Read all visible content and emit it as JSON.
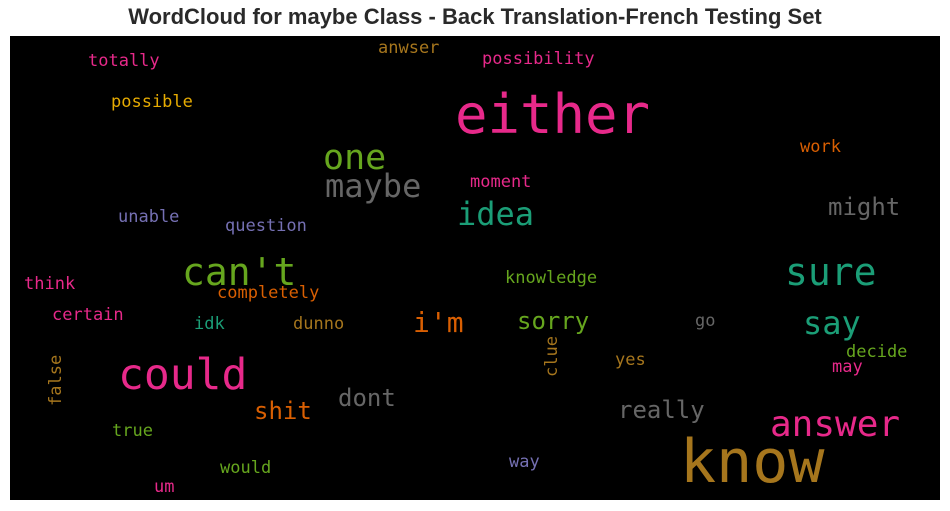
{
  "chart_data": {
    "type": "wordcloud",
    "title": "WordCloud for maybe Class - Back Translation-French Testing Set",
    "background": "#000000",
    "words": [
      {
        "text": "either",
        "weight": 1.0,
        "color": "#e7298a"
      },
      {
        "text": "know",
        "weight": 1.0,
        "color": "#a6761d"
      },
      {
        "text": "could",
        "weight": 0.72,
        "color": "#e7298a"
      },
      {
        "text": "can't",
        "weight": 0.66,
        "color": "#66a61e"
      },
      {
        "text": "sure",
        "weight": 0.66,
        "color": "#1b9e77"
      },
      {
        "text": "answer",
        "weight": 0.62,
        "color": "#e7298a"
      },
      {
        "text": "one",
        "weight": 0.58,
        "color": "#66a61e"
      },
      {
        "text": "maybe",
        "weight": 0.56,
        "color": "#666666"
      },
      {
        "text": "idea",
        "weight": 0.54,
        "color": "#1b9e77"
      },
      {
        "text": "say",
        "weight": 0.54,
        "color": "#1b9e77"
      },
      {
        "text": "i'm",
        "weight": 0.48,
        "color": "#d95f02"
      },
      {
        "text": "really",
        "weight": 0.44,
        "color": "#666666"
      },
      {
        "text": "might",
        "weight": 0.44,
        "color": "#666666"
      },
      {
        "text": "shit",
        "weight": 0.42,
        "color": "#d95f02"
      },
      {
        "text": "dont",
        "weight": 0.42,
        "color": "#666666"
      },
      {
        "text": "sorry",
        "weight": 0.42,
        "color": "#66a61e"
      },
      {
        "text": "possibility",
        "weight": 0.3,
        "color": "#e7298a"
      },
      {
        "text": "totally",
        "weight": 0.3,
        "color": "#e7298a"
      },
      {
        "text": "anwser",
        "weight": 0.3,
        "color": "#a6761d"
      },
      {
        "text": "possible",
        "weight": 0.3,
        "color": "#e6ab02"
      },
      {
        "text": "work",
        "weight": 0.3,
        "color": "#d95f02"
      },
      {
        "text": "moment",
        "weight": 0.28,
        "color": "#e7298a"
      },
      {
        "text": "unable",
        "weight": 0.28,
        "color": "#7570b3"
      },
      {
        "text": "question",
        "weight": 0.3,
        "color": "#7570b3"
      },
      {
        "text": "think",
        "weight": 0.28,
        "color": "#e7298a"
      },
      {
        "text": "knowledge",
        "weight": 0.3,
        "color": "#66a61e"
      },
      {
        "text": "completely",
        "weight": 0.28,
        "color": "#d95f02"
      },
      {
        "text": "certain",
        "weight": 0.28,
        "color": "#e7298a"
      },
      {
        "text": "idk",
        "weight": 0.28,
        "color": "#1b9e77"
      },
      {
        "text": "dunno",
        "weight": 0.28,
        "color": "#a6761d"
      },
      {
        "text": "go",
        "weight": 0.28,
        "color": "#666666"
      },
      {
        "text": "clue",
        "weight": 0.28,
        "color": "#a6761d",
        "vertical": true
      },
      {
        "text": "false",
        "weight": 0.28,
        "color": "#a6761d",
        "vertical": true
      },
      {
        "text": "yes",
        "weight": 0.28,
        "color": "#a6761d"
      },
      {
        "text": "decide",
        "weight": 0.28,
        "color": "#66a61e"
      },
      {
        "text": "may",
        "weight": 0.28,
        "color": "#e7298a"
      },
      {
        "text": "true",
        "weight": 0.28,
        "color": "#66a61e"
      },
      {
        "text": "would",
        "weight": 0.28,
        "color": "#66a61e"
      },
      {
        "text": "way",
        "weight": 0.28,
        "color": "#7570b3"
      },
      {
        "text": "um",
        "weight": 0.28,
        "color": "#e7298a"
      }
    ]
  }
}
